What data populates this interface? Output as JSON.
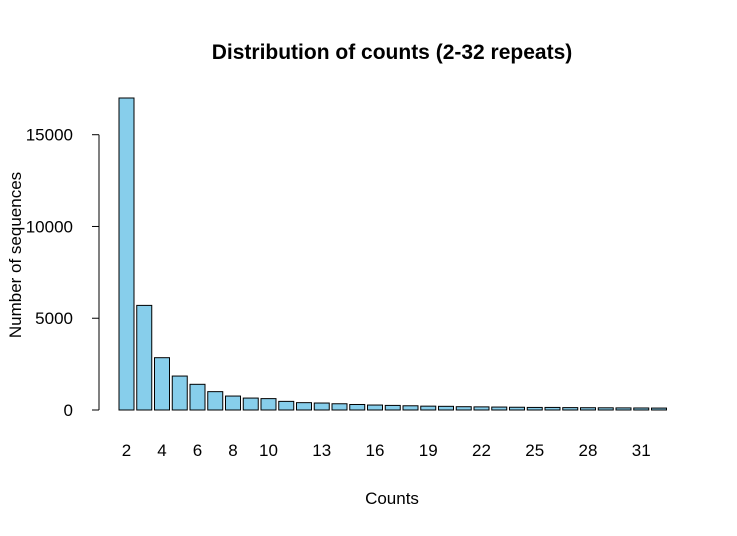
{
  "chart_data": {
    "type": "bar",
    "title": "Distribution of counts (2-32 repeats)",
    "xlabel": "Counts",
    "ylabel": "Number of sequences",
    "categories": [
      "2",
      "3",
      "4",
      "5",
      "6",
      "7",
      "8",
      "9",
      "10",
      "11",
      "12",
      "13",
      "14",
      "15",
      "16",
      "17",
      "18",
      "19",
      "20",
      "21",
      "22",
      "23",
      "24",
      "25",
      "26",
      "27",
      "28",
      "29",
      "30",
      "31",
      "32"
    ],
    "category_labels_shown": [
      "2",
      "4",
      "6",
      "8",
      "10",
      "13",
      "16",
      "19",
      "22",
      "25",
      "28",
      "31"
    ],
    "values": [
      17000,
      5700,
      2850,
      1850,
      1400,
      1000,
      760,
      650,
      620,
      470,
      400,
      380,
      340,
      300,
      270,
      250,
      230,
      210,
      200,
      180,
      170,
      160,
      150,
      140,
      140,
      130,
      125,
      120,
      115,
      110,
      105
    ],
    "yticks": [
      0,
      5000,
      10000,
      15000
    ],
    "ylim": [
      0,
      17000
    ],
    "bar_color": "#87ceeb",
    "grid": false,
    "legend": "none"
  }
}
